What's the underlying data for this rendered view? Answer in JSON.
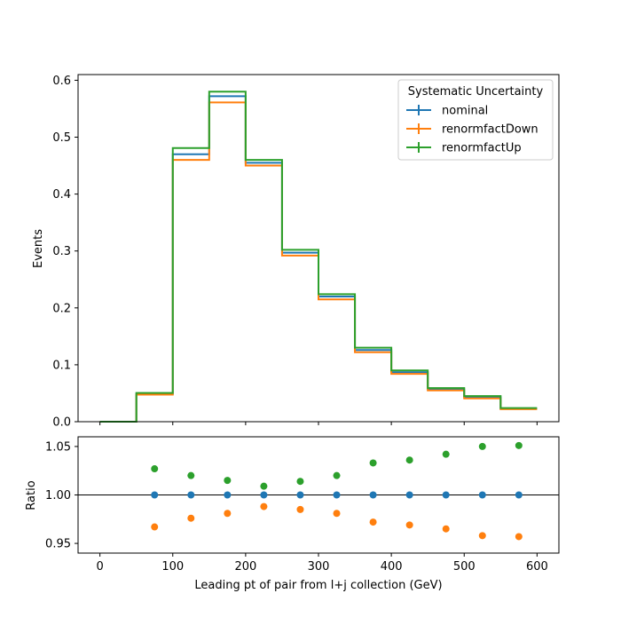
{
  "chart_data": [
    {
      "type": "line",
      "subtype": "step-histogram",
      "ylabel": "Events",
      "xlim": [
        -30,
        630
      ],
      "ylim": [
        0,
        0.61
      ],
      "yticks": [
        0.0,
        0.1,
        0.2,
        0.3,
        0.4,
        0.5,
        0.6
      ],
      "ytick_labels": [
        "0.0",
        "0.1",
        "0.2",
        "0.3",
        "0.4",
        "0.5",
        "0.6"
      ],
      "bin_edges": [
        0,
        50,
        100,
        150,
        200,
        250,
        300,
        350,
        400,
        450,
        500,
        550,
        600
      ],
      "legend": {
        "title": "Systematic Uncertainty",
        "placement": "top-right"
      },
      "series": [
        {
          "name": "nominal",
          "color": "#1f77b4",
          "values": [
            0.0,
            0.049,
            0.47,
            0.572,
            0.455,
            0.297,
            0.22,
            0.126,
            0.087,
            0.057,
            0.043,
            0.023
          ]
        },
        {
          "name": "renormfactDown",
          "color": "#ff7f0e",
          "values": [
            0.0,
            0.0475,
            0.46,
            0.561,
            0.45,
            0.292,
            0.215,
            0.122,
            0.084,
            0.055,
            0.041,
            0.022
          ]
        },
        {
          "name": "renormfactUp",
          "color": "#2ca02c",
          "values": [
            0.0,
            0.0505,
            0.481,
            0.58,
            0.46,
            0.302,
            0.224,
            0.13,
            0.09,
            0.059,
            0.045,
            0.024
          ]
        }
      ]
    },
    {
      "type": "scatter",
      "xlabel": "Leading pt of pair from l+j collection (GeV)",
      "ylabel": "Ratio",
      "xlim": [
        -30,
        630
      ],
      "ylim": [
        0.94,
        1.06
      ],
      "xticks": [
        0,
        100,
        200,
        300,
        400,
        500,
        600
      ],
      "xtick_labels": [
        "0",
        "100",
        "200",
        "300",
        "400",
        "500",
        "600"
      ],
      "yticks": [
        0.95,
        1.0,
        1.05
      ],
      "ytick_labels": [
        "0.95",
        "1.00",
        "1.05"
      ],
      "reference_line": 1.0,
      "x": [
        75,
        125,
        175,
        225,
        275,
        325,
        375,
        425,
        475,
        525,
        575
      ],
      "series": [
        {
          "name": "nominal",
          "color": "#1f77b4",
          "values": [
            1.0,
            1.0,
            1.0,
            1.0,
            1.0,
            1.0,
            1.0,
            1.0,
            1.0,
            1.0,
            1.0
          ]
        },
        {
          "name": "renormfactDown",
          "color": "#ff7f0e",
          "values": [
            0.967,
            0.976,
            0.981,
            0.988,
            0.985,
            0.981,
            0.972,
            0.969,
            0.965,
            0.958,
            0.957
          ]
        },
        {
          "name": "renormfactUp",
          "color": "#2ca02c",
          "values": [
            1.027,
            1.02,
            1.015,
            1.009,
            1.014,
            1.02,
            1.033,
            1.036,
            1.042,
            1.05,
            1.051
          ]
        }
      ]
    }
  ]
}
